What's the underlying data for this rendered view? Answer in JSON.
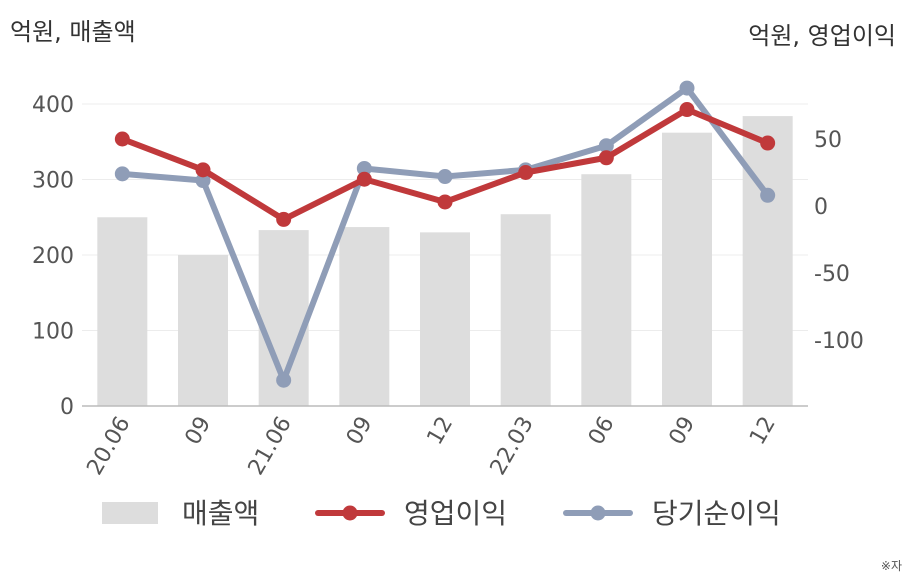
{
  "chart_data": {
    "type": "bar+line",
    "left_axis_label": "억원, 매출액",
    "right_axis_label": "억원, 영업이익",
    "categories": [
      "20.06",
      "09",
      "21.06",
      "09",
      "12",
      "22.03",
      "06",
      "09",
      "12"
    ],
    "left_ylim": [
      0,
      400
    ],
    "left_ticks": [
      0,
      100,
      200,
      300,
      400
    ],
    "right_ylim": [
      -150,
      80
    ],
    "right_ticks": [
      -100,
      -50,
      0,
      50
    ],
    "series": [
      {
        "name": "매출액",
        "type": "bar",
        "axis": "left",
        "color": "#dddddd",
        "values": [
          250,
          200,
          233,
          237,
          230,
          254,
          307,
          362,
          384
        ]
      },
      {
        "name": "영업이익",
        "type": "line",
        "axis": "right",
        "color": "#c0393b",
        "values": [
          50,
          27,
          -10,
          20,
          3,
          25,
          36,
          72,
          47
        ]
      },
      {
        "name": "당기순이익",
        "type": "line",
        "axis": "right",
        "color": "#8f9db7",
        "values": [
          24,
          19,
          -130,
          28,
          22,
          27,
          45,
          88,
          8
        ]
      }
    ],
    "grid": true,
    "legend_position": "bottom"
  },
  "note": "※자"
}
